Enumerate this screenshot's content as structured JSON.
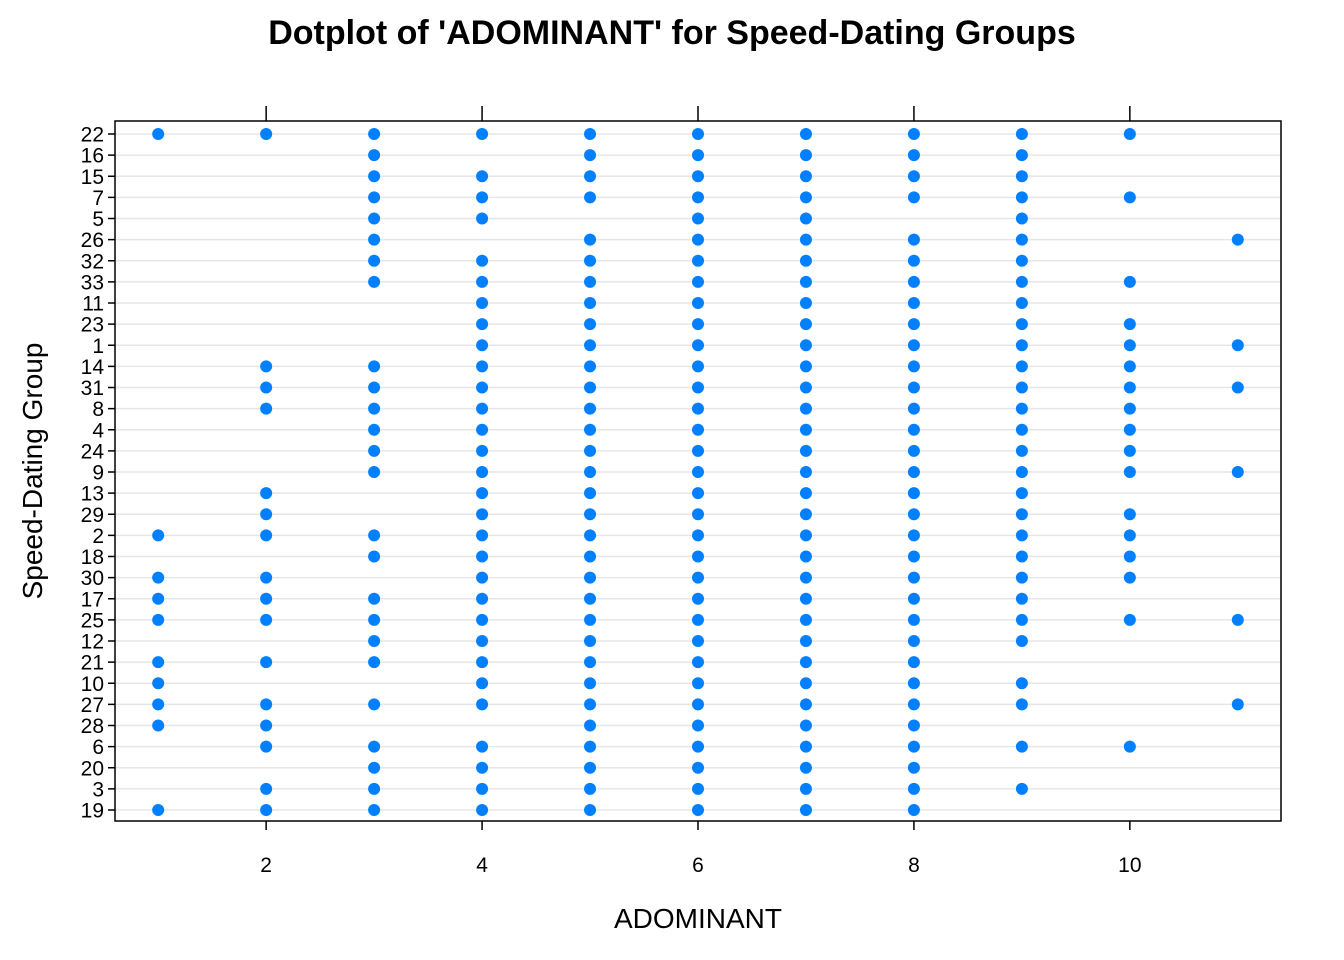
{
  "chart_data": {
    "type": "scatter",
    "title": "Dotplot of 'ADOMINANT' for Speed-Dating Groups",
    "xlabel": "ADOMINANT",
    "ylabel": "Speed-Dating Group",
    "x_ticks": [
      2,
      4,
      6,
      8,
      10
    ],
    "xlim": [
      0.6,
      11.4
    ],
    "grid": true,
    "point_color": "#0080ff",
    "categories": [
      "22",
      "16",
      "15",
      "7",
      "5",
      "26",
      "32",
      "33",
      "11",
      "23",
      "1",
      "14",
      "31",
      "8",
      "4",
      "24",
      "9",
      "13",
      "29",
      "2",
      "18",
      "30",
      "17",
      "25",
      "12",
      "21",
      "10",
      "27",
      "28",
      "6",
      "20",
      "3",
      "19"
    ],
    "groups": [
      {
        "group": "22",
        "x": [
          1,
          2,
          3,
          4,
          5,
          6,
          7,
          8,
          9,
          10
        ]
      },
      {
        "group": "16",
        "x": [
          3,
          5,
          6,
          7,
          8,
          9
        ]
      },
      {
        "group": "15",
        "x": [
          3,
          4,
          5,
          6,
          7,
          8,
          9
        ]
      },
      {
        "group": "7",
        "x": [
          3,
          4,
          5,
          6,
          7,
          8,
          9,
          10
        ]
      },
      {
        "group": "5",
        "x": [
          3,
          4,
          6,
          7,
          9
        ]
      },
      {
        "group": "26",
        "x": [
          3,
          5,
          6,
          7,
          8,
          9,
          11
        ]
      },
      {
        "group": "32",
        "x": [
          3,
          4,
          5,
          6,
          7,
          8,
          9
        ]
      },
      {
        "group": "33",
        "x": [
          3,
          4,
          5,
          6,
          7,
          8,
          9,
          10
        ]
      },
      {
        "group": "11",
        "x": [
          4,
          5,
          6,
          7,
          8,
          9
        ]
      },
      {
        "group": "23",
        "x": [
          4,
          5,
          6,
          7,
          8,
          9,
          10
        ]
      },
      {
        "group": "1",
        "x": [
          4,
          5,
          6,
          7,
          8,
          9,
          10,
          11
        ]
      },
      {
        "group": "14",
        "x": [
          2,
          3,
          4,
          5,
          6,
          7,
          8,
          9,
          10
        ]
      },
      {
        "group": "31",
        "x": [
          2,
          3,
          4,
          5,
          6,
          7,
          8,
          9,
          10,
          11
        ]
      },
      {
        "group": "8",
        "x": [
          2,
          3,
          4,
          5,
          6,
          7,
          8,
          9,
          10
        ]
      },
      {
        "group": "4",
        "x": [
          3,
          4,
          5,
          6,
          7,
          8,
          9,
          10
        ]
      },
      {
        "group": "24",
        "x": [
          3,
          4,
          5,
          6,
          7,
          8,
          9,
          10
        ]
      },
      {
        "group": "9",
        "x": [
          3,
          4,
          5,
          6,
          7,
          8,
          9,
          10,
          11
        ]
      },
      {
        "group": "13",
        "x": [
          2,
          4,
          5,
          6,
          7,
          8,
          9
        ]
      },
      {
        "group": "29",
        "x": [
          2,
          4,
          5,
          6,
          7,
          8,
          9,
          10
        ]
      },
      {
        "group": "2",
        "x": [
          1,
          2,
          3,
          4,
          5,
          6,
          7,
          8,
          9,
          10
        ]
      },
      {
        "group": "18",
        "x": [
          3,
          4,
          5,
          6,
          7,
          8,
          9,
          10
        ]
      },
      {
        "group": "30",
        "x": [
          1,
          2,
          4,
          5,
          6,
          7,
          8,
          9,
          10
        ]
      },
      {
        "group": "17",
        "x": [
          1,
          2,
          3,
          4,
          5,
          6,
          7,
          8,
          9
        ]
      },
      {
        "group": "25",
        "x": [
          1,
          2,
          3,
          4,
          5,
          6,
          7,
          8,
          9,
          10,
          11
        ]
      },
      {
        "group": "12",
        "x": [
          3,
          4,
          5,
          6,
          7,
          8,
          9
        ]
      },
      {
        "group": "21",
        "x": [
          1,
          2,
          3,
          4,
          5,
          6,
          7,
          8
        ]
      },
      {
        "group": "10",
        "x": [
          1,
          4,
          5,
          6,
          7,
          8,
          9
        ]
      },
      {
        "group": "27",
        "x": [
          1,
          2,
          3,
          4,
          5,
          6,
          7,
          8,
          9,
          11
        ]
      },
      {
        "group": "28",
        "x": [
          1,
          2,
          5,
          6,
          7,
          8
        ]
      },
      {
        "group": "6",
        "x": [
          2,
          3,
          4,
          5,
          6,
          7,
          8,
          9,
          10
        ]
      },
      {
        "group": "20",
        "x": [
          3,
          4,
          5,
          6,
          7,
          8
        ]
      },
      {
        "group": "3",
        "x": [
          2,
          3,
          4,
          5,
          6,
          7,
          8,
          9
        ]
      },
      {
        "group": "19",
        "x": [
          1,
          2,
          3,
          4,
          5,
          6,
          7,
          8
        ]
      }
    ]
  }
}
